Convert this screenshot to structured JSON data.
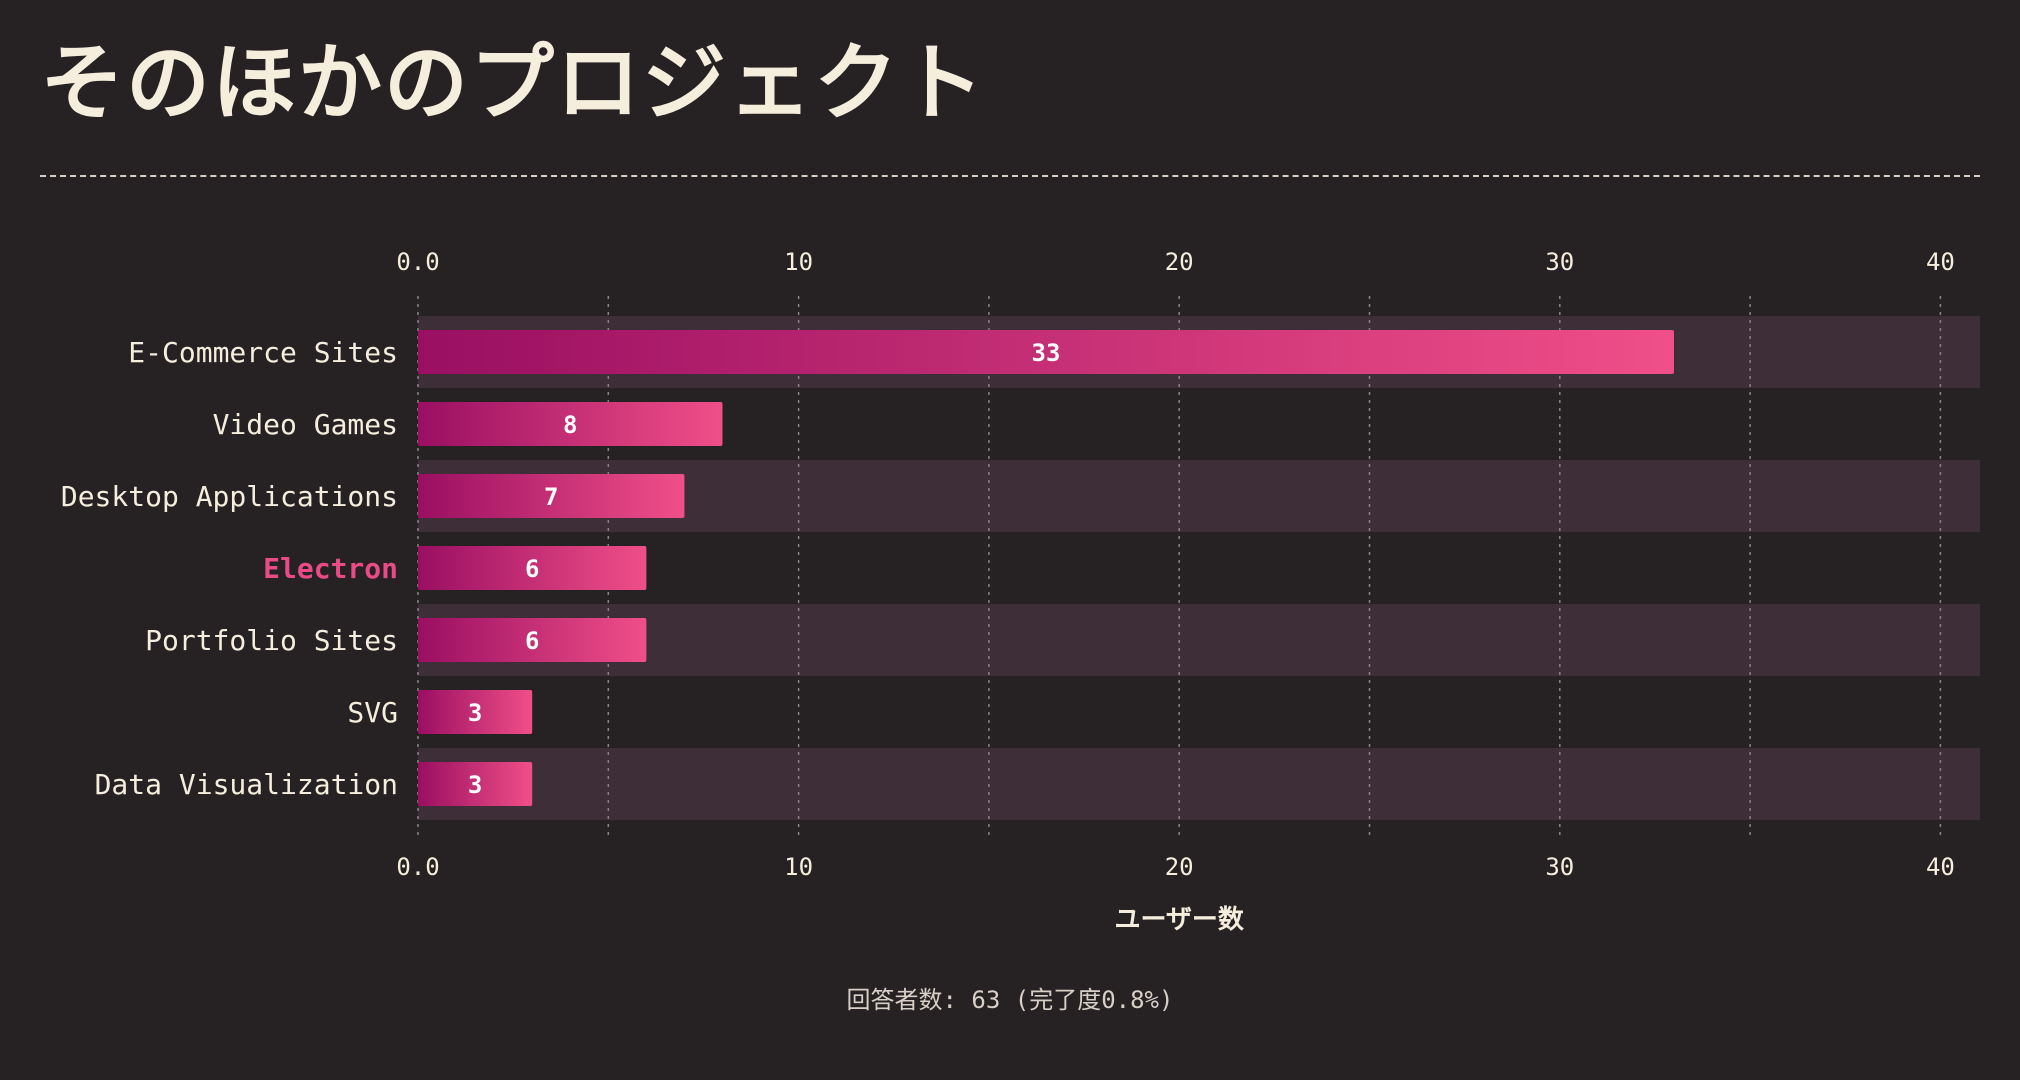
{
  "page": {
    "title": "そのほかのプロジェクト",
    "footnote": "回答者数: 63 (完了度0.8%)"
  },
  "colors": {
    "background": "#262224",
    "band": "#3e2e38",
    "bar_start": "#9a0f62",
    "bar_end": "#f04f88",
    "highlight": "#e94b86",
    "text": "#f5eedc",
    "grid": "#8a8287"
  },
  "chart_data": {
    "type": "bar",
    "orientation": "horizontal",
    "categories": [
      "E-Commerce Sites",
      "Video Games",
      "Desktop Applications",
      "Electron",
      "Portfolio Sites",
      "SVG",
      "Data Visualization"
    ],
    "values": [
      33,
      8,
      7,
      6,
      6,
      3,
      3
    ],
    "highlighted_category": "Electron",
    "xlabel": "ユーザー数",
    "xlim": [
      0,
      41
    ],
    "xticks": [
      0,
      10,
      20,
      30,
      40
    ],
    "xtick_labels": [
      "0.0",
      "10",
      "20",
      "30",
      "40"
    ],
    "grid": true,
    "grid_minor_step": 5,
    "tick_labels_top_and_bottom": true,
    "data_labels": true,
    "alternating_row_bands": true
  }
}
